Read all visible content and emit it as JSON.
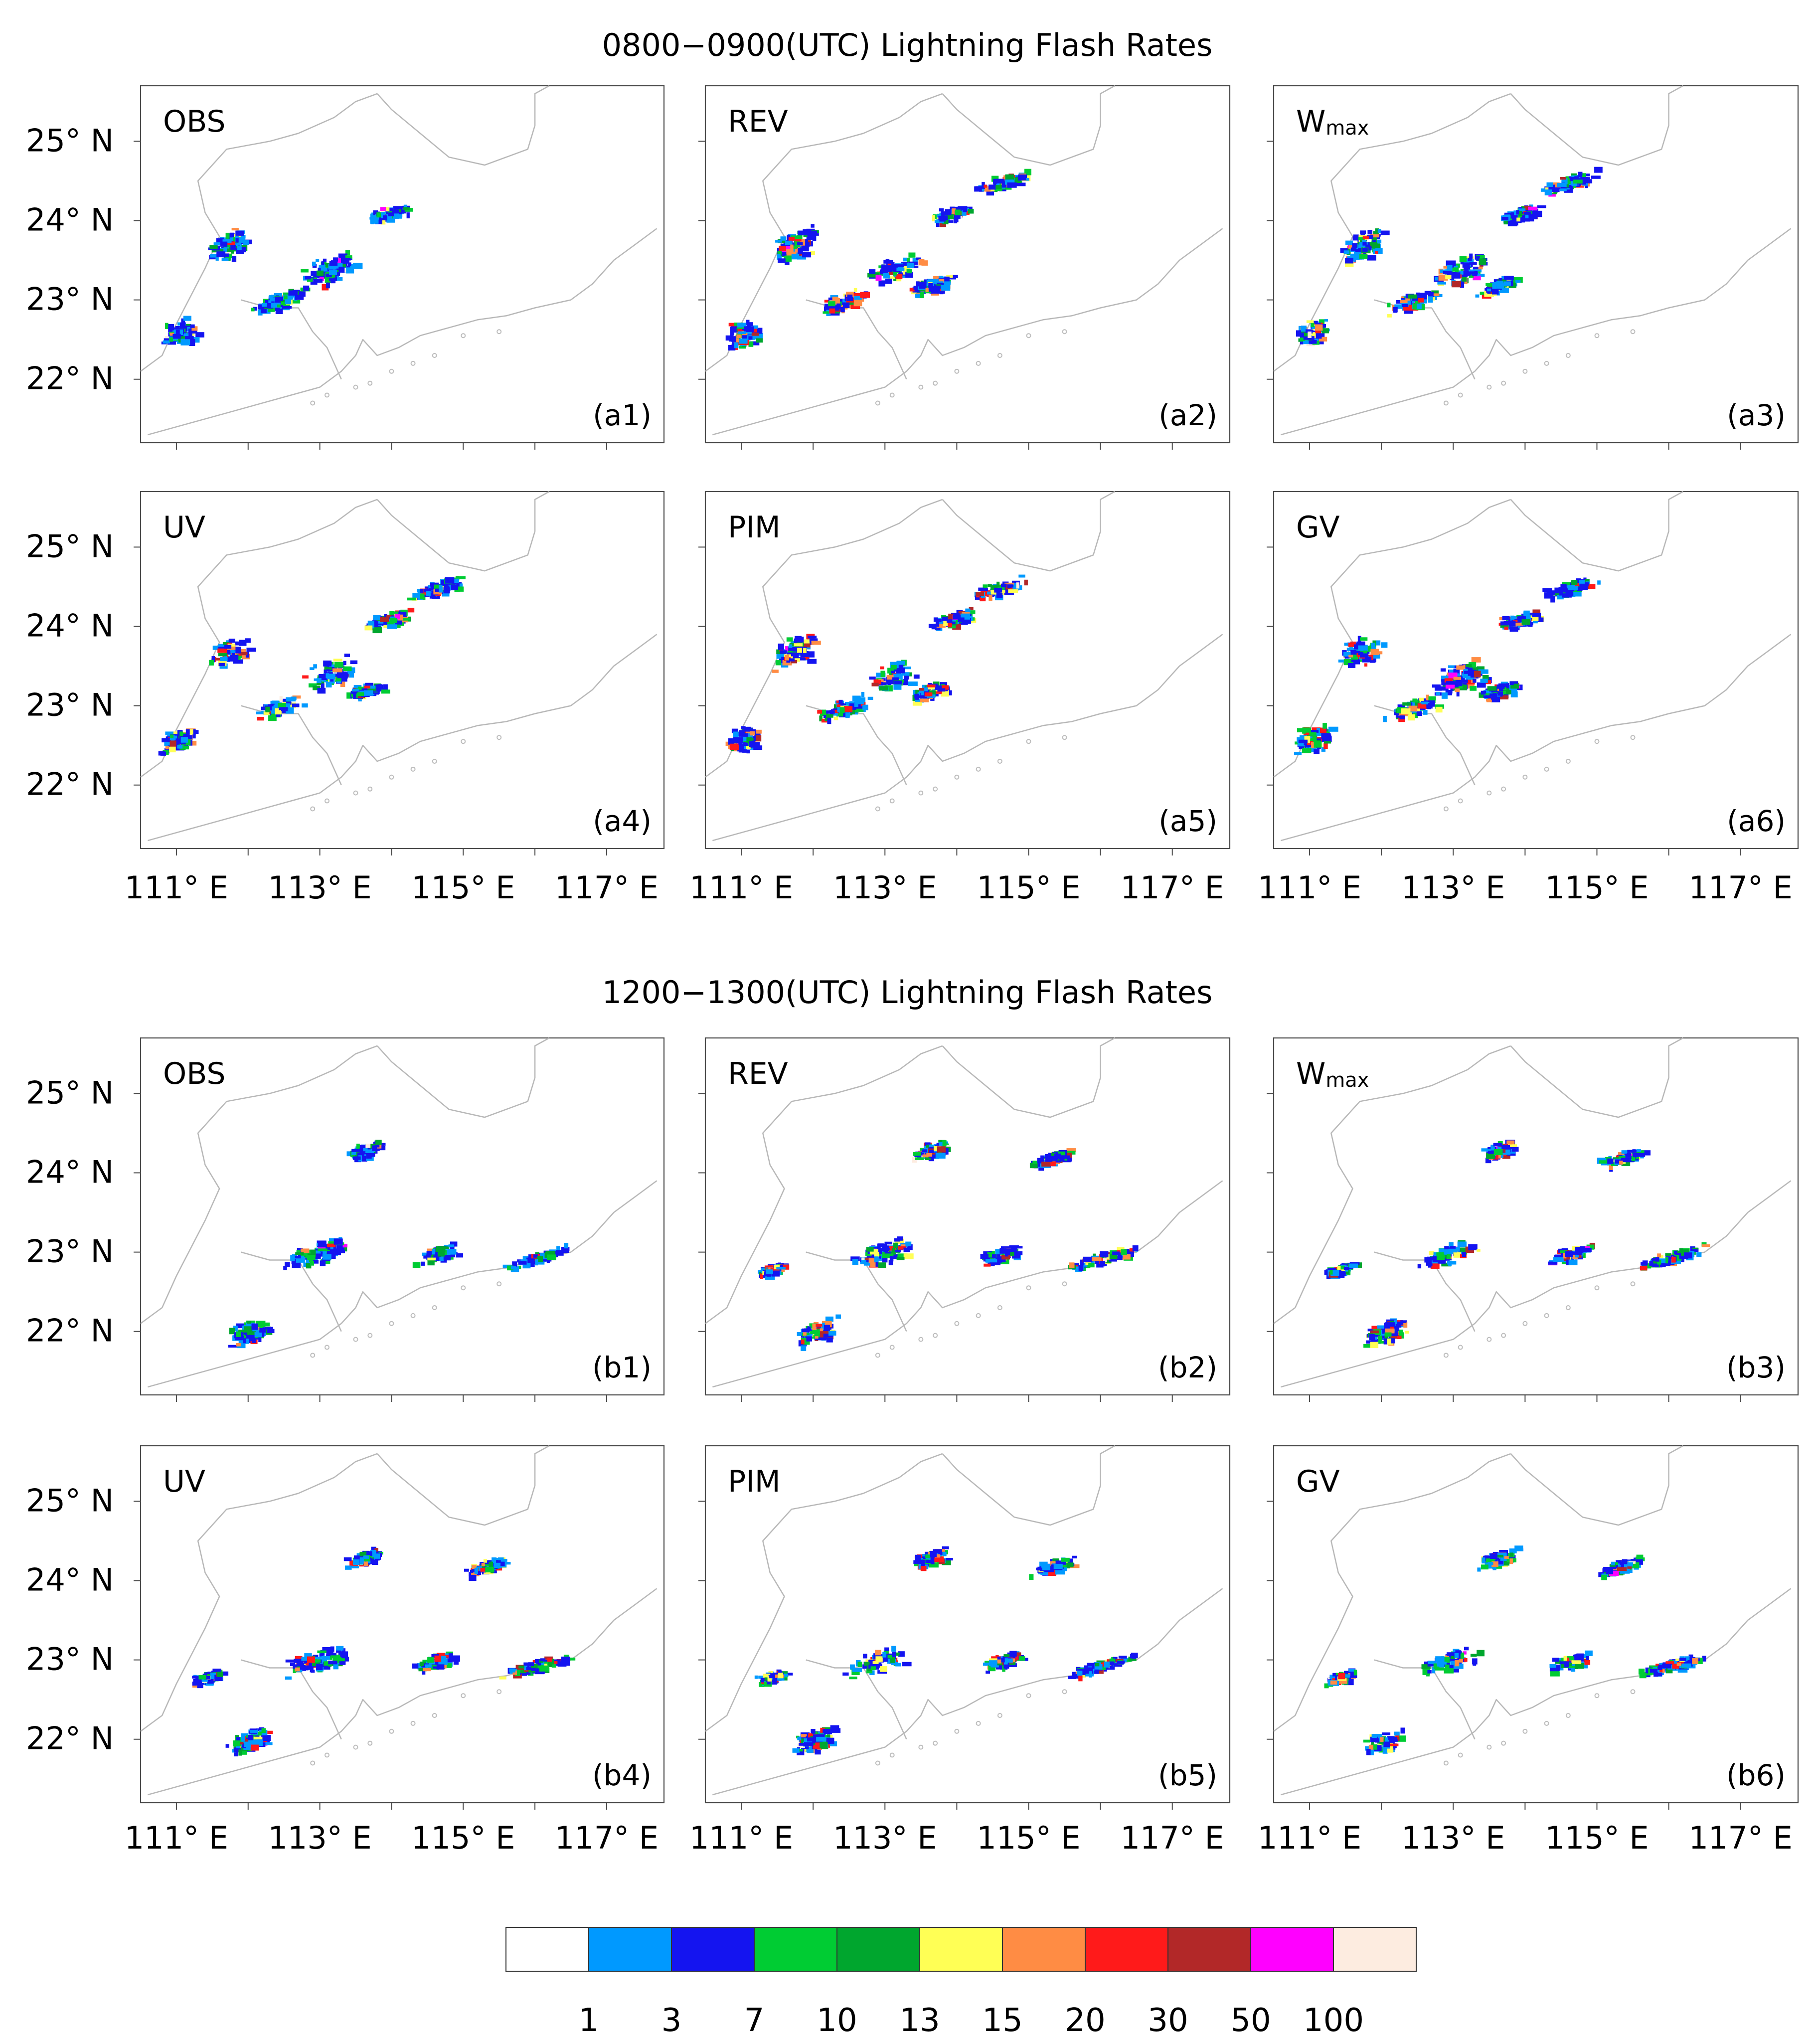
{
  "figure": {
    "sections": [
      {
        "title": "0800−0900(UTC)   Lightning Flash Rates",
        "panels": [
          {
            "id": "(a1)",
            "label": "OBS"
          },
          {
            "id": "(a2)",
            "label": "REV"
          },
          {
            "id": "(a3)",
            "label": "W",
            "label_sub": "max"
          },
          {
            "id": "(a4)",
            "label": "UV"
          },
          {
            "id": "(a5)",
            "label": "PIM"
          },
          {
            "id": "(a6)",
            "label": "GV"
          }
        ]
      },
      {
        "title": "1200−1300(UTC)   Lightning Flash Rates",
        "panels": [
          {
            "id": "(b1)",
            "label": "OBS"
          },
          {
            "id": "(b2)",
            "label": "REV"
          },
          {
            "id": "(b3)",
            "label": "W",
            "label_sub": "max"
          },
          {
            "id": "(b4)",
            "label": "UV"
          },
          {
            "id": "(b5)",
            "label": "PIM"
          },
          {
            "id": "(b6)",
            "label": "GV"
          }
        ]
      }
    ],
    "lat_ticks": [
      "25° N",
      "24° N",
      "23° N",
      "22° N"
    ],
    "lon_ticks": [
      "111° E",
      "113° E",
      "115° E",
      "117° E"
    ]
  },
  "colorbar": {
    "colors": [
      "#ffffff",
      "#0099ff",
      "#1414f0",
      "#00cc33",
      "#00a62e",
      "#ffff55",
      "#ff8c44",
      "#ff1a1a",
      "#b22828",
      "#ff00ff",
      "#fdece0"
    ],
    "labels": [
      "1",
      "3",
      "7",
      "10",
      "13",
      "15",
      "20",
      "30",
      "50",
      "100"
    ]
  }
}
